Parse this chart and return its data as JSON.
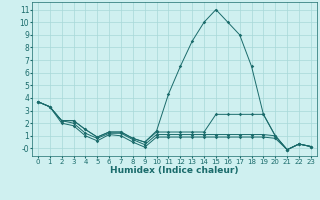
{
  "xlabel": "Humidex (Indice chaleur)",
  "background_color": "#cff0f0",
  "grid_color": "#a8d8d8",
  "line_color": "#1a6b6b",
  "xlim": [
    -0.5,
    23.5
  ],
  "ylim": [
    -0.6,
    11.6
  ],
  "xtick_labels": [
    "0",
    "1",
    "2",
    "3",
    "4",
    "5",
    "6",
    "7",
    "8",
    "9",
    "10",
    "11",
    "12",
    "13",
    "14",
    "15",
    "16",
    "17",
    "18",
    "19",
    "20",
    "21",
    "22",
    "23"
  ],
  "xticks": [
    0,
    1,
    2,
    3,
    4,
    5,
    6,
    7,
    8,
    9,
    10,
    11,
    12,
    13,
    14,
    15,
    16,
    17,
    18,
    19,
    20,
    21,
    22,
    23
  ],
  "yticks": [
    0,
    1,
    2,
    3,
    4,
    5,
    6,
    7,
    8,
    9,
    10,
    11
  ],
  "ytick_labels": [
    "-0",
    "1",
    "2",
    "3",
    "4",
    "5",
    "6",
    "7",
    "8",
    "9",
    "10",
    "11"
  ],
  "series": [
    {
      "x": [
        0,
        1,
        2,
        3,
        4,
        5,
        6,
        7,
        8,
        9,
        10,
        11,
        12,
        13,
        14,
        15,
        16,
        17,
        18,
        19,
        20,
        21,
        22,
        23
      ],
      "y": [
        3.7,
        3.3,
        2.2,
        2.2,
        1.5,
        0.9,
        1.3,
        1.3,
        0.8,
        0.5,
        1.4,
        4.3,
        6.5,
        8.5,
        10.0,
        11.0,
        10.0,
        9.0,
        6.5,
        2.7,
        1.0,
        -0.1,
        0.35,
        0.15
      ]
    },
    {
      "x": [
        0,
        1,
        2,
        3,
        4,
        5,
        6,
        7,
        8,
        9,
        10,
        11,
        12,
        13,
        14,
        15,
        16,
        17,
        18,
        19,
        20,
        21,
        22,
        23
      ],
      "y": [
        3.7,
        3.3,
        2.2,
        2.2,
        1.5,
        0.9,
        1.3,
        1.3,
        0.8,
        0.5,
        1.3,
        1.3,
        1.3,
        1.3,
        1.3,
        2.7,
        2.7,
        2.7,
        2.7,
        2.7,
        1.0,
        -0.1,
        0.35,
        0.15
      ]
    },
    {
      "x": [
        0,
        1,
        2,
        3,
        4,
        5,
        6,
        7,
        8,
        9,
        10,
        11,
        12,
        13,
        14,
        15,
        16,
        17,
        18,
        19,
        20,
        21,
        22,
        23
      ],
      "y": [
        3.7,
        3.3,
        2.2,
        2.0,
        1.2,
        0.8,
        1.2,
        1.2,
        0.7,
        0.3,
        1.1,
        1.1,
        1.1,
        1.1,
        1.1,
        1.1,
        1.1,
        1.1,
        1.1,
        1.1,
        1.0,
        -0.1,
        0.35,
        0.15
      ]
    },
    {
      "x": [
        0,
        1,
        2,
        3,
        4,
        5,
        6,
        7,
        8,
        9,
        10,
        11,
        12,
        13,
        14,
        15,
        16,
        17,
        18,
        19,
        20,
        21,
        22,
        23
      ],
      "y": [
        3.7,
        3.3,
        2.0,
        1.8,
        1.0,
        0.6,
        1.1,
        1.0,
        0.5,
        0.1,
        0.9,
        0.9,
        0.9,
        0.9,
        0.9,
        0.9,
        0.9,
        0.9,
        0.9,
        0.9,
        0.8,
        -0.1,
        0.35,
        0.15
      ]
    }
  ]
}
